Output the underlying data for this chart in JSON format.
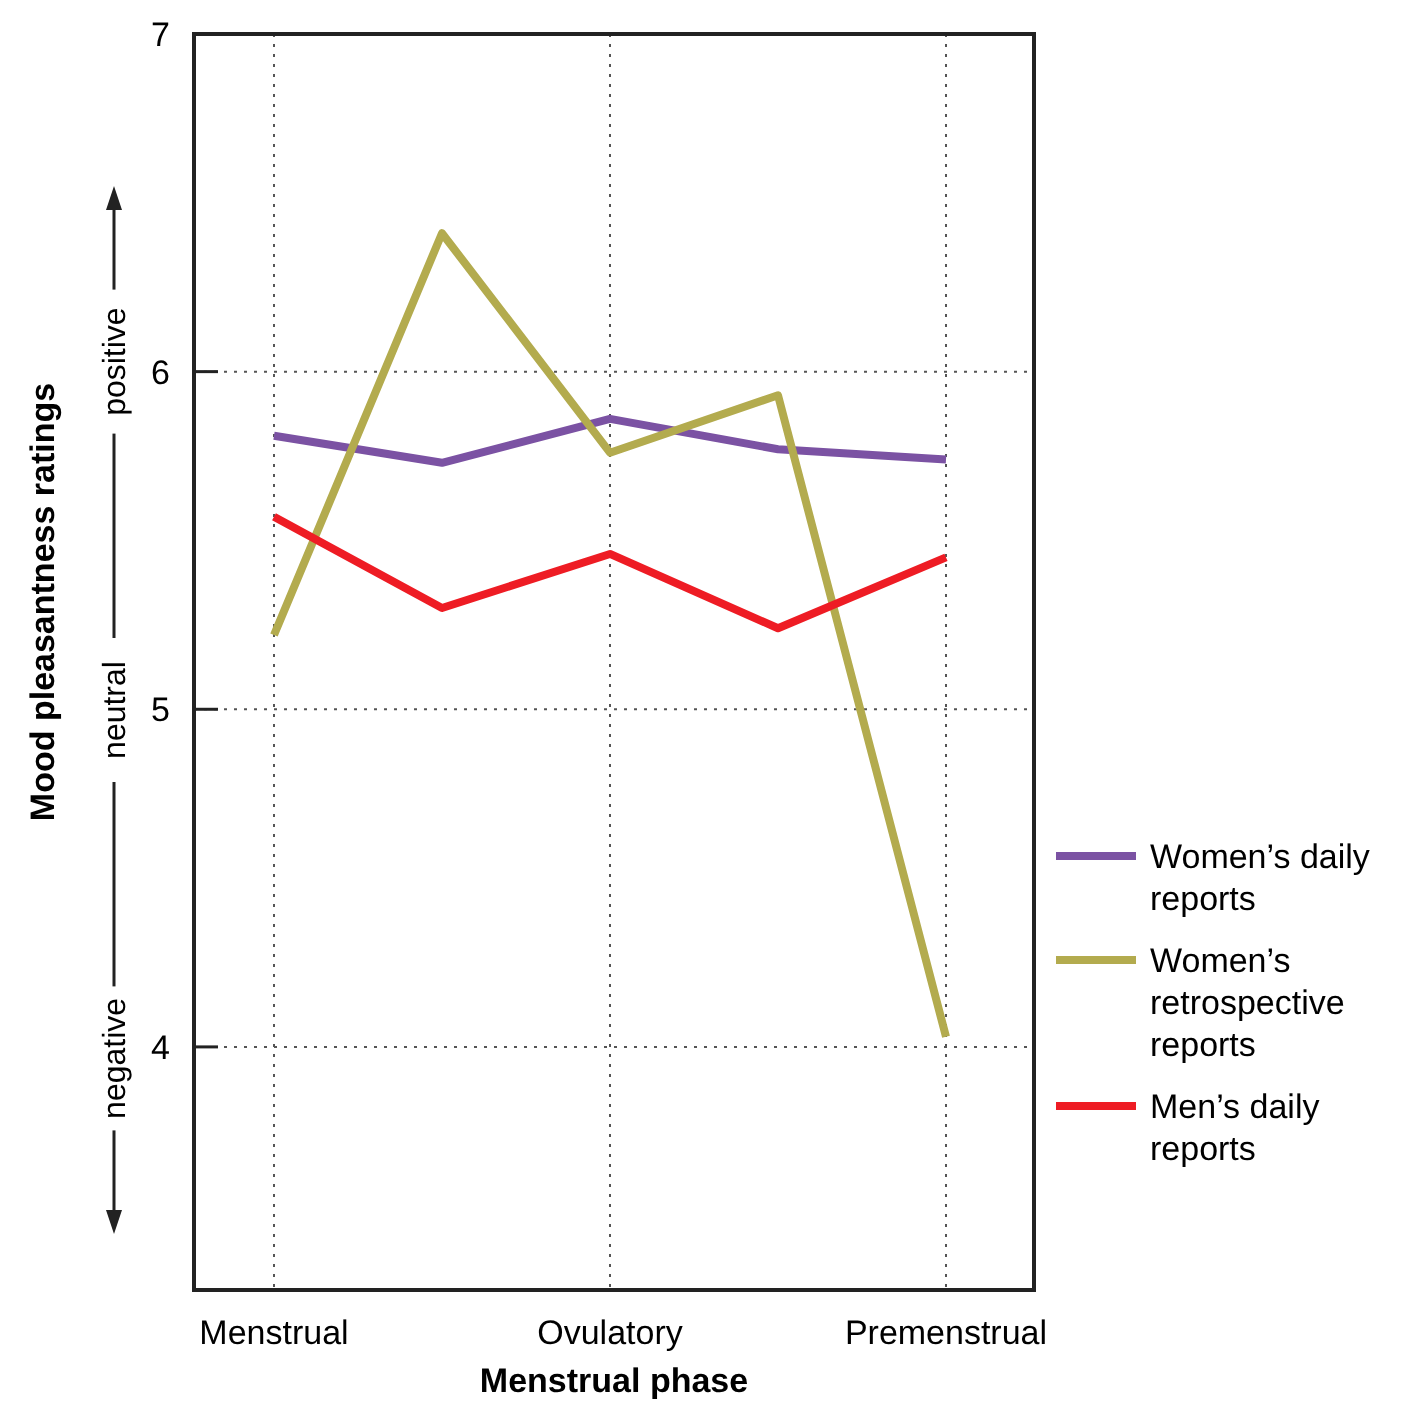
{
  "chart_data": {
    "type": "line",
    "xlabel": "Menstrual phase",
    "ylabel": "Mood pleasantness ratings",
    "categories": [
      "Menstrual",
      null,
      "Ovulatory",
      null,
      "Premenstrual"
    ],
    "series": [
      {
        "name": "Women’s daily reports",
        "color": "#7b52a3",
        "values": [
          5.81,
          5.73,
          5.86,
          5.77,
          5.74
        ]
      },
      {
        "name": "Women’s retrospective reports",
        "color": "#b3ab4e",
        "values": [
          5.22,
          6.41,
          5.76,
          5.93,
          4.03
        ]
      },
      {
        "name": "Men’s daily reports",
        "color": "#ee1c24",
        "values": [
          5.57,
          5.3,
          5.46,
          5.24,
          5.45
        ]
      }
    ],
    "ylim": [
      3.28,
      7
    ],
    "yticks": [
      4,
      5,
      6,
      7
    ],
    "grid": true,
    "legend": "bottom right",
    "marker": "none",
    "line_style": "solid",
    "annotations": [
      "negative",
      "neutral",
      "positive"
    ]
  }
}
